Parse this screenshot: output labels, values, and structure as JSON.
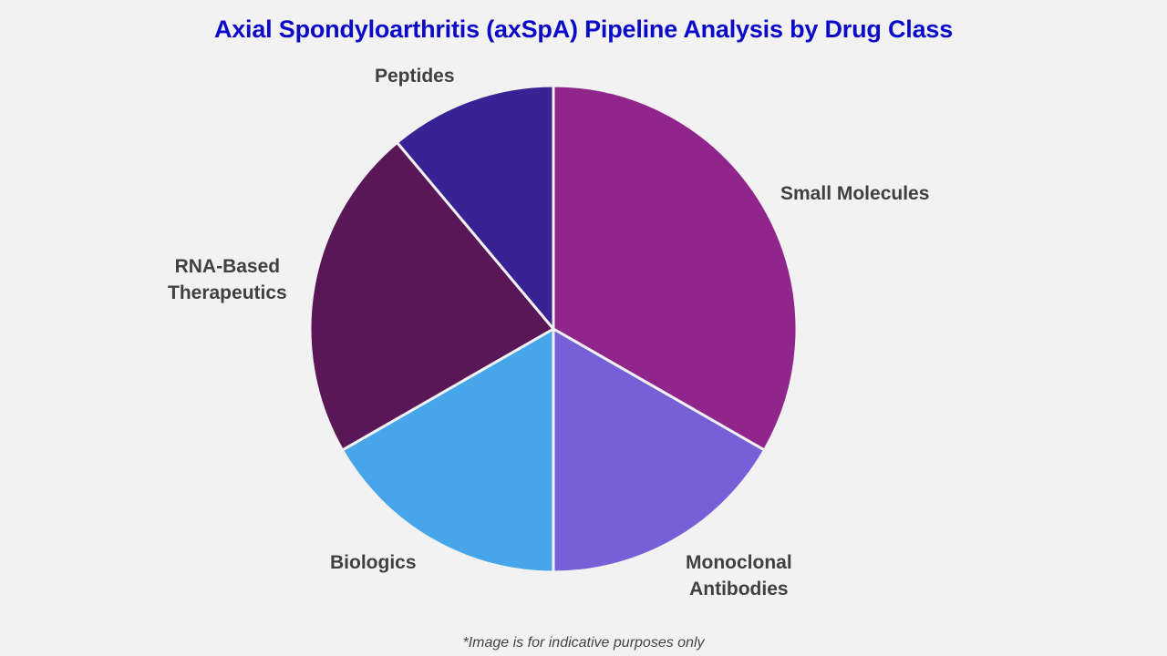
{
  "title": "Axial Spondyloarthritis (axSpA) Pipeline Analysis by Drug Class",
  "footnote": "*Image is for indicative purposes only",
  "chart_data": {
    "type": "pie",
    "title": "Axial Spondyloarthritis (axSpA) Pipeline Analysis by Drug Class",
    "categories": [
      "Small Molecules",
      "Monoclonal Antibodies",
      "Biologics",
      "RNA-Based Therapeutics",
      "Peptides"
    ],
    "values": [
      33.3,
      16.7,
      16.7,
      22.2,
      11.1
    ],
    "colors": [
      "#90258c",
      "#775fd8",
      "#47a5ea",
      "#591758",
      "#392394"
    ],
    "start_angle": "12 o'clock",
    "direction": "clockwise",
    "legend": "none (direct labels)",
    "units": "share of pipeline (%, estimated from slice angles)"
  },
  "labels": {
    "small_molecules": "Small Molecules",
    "monoclonal_line1": "Monoclonal",
    "monoclonal_line2": "Antibodies",
    "biologics": "Biologics",
    "rna_line1": "RNA-Based",
    "rna_line2": "Therapeutics",
    "peptides": "Peptides"
  }
}
